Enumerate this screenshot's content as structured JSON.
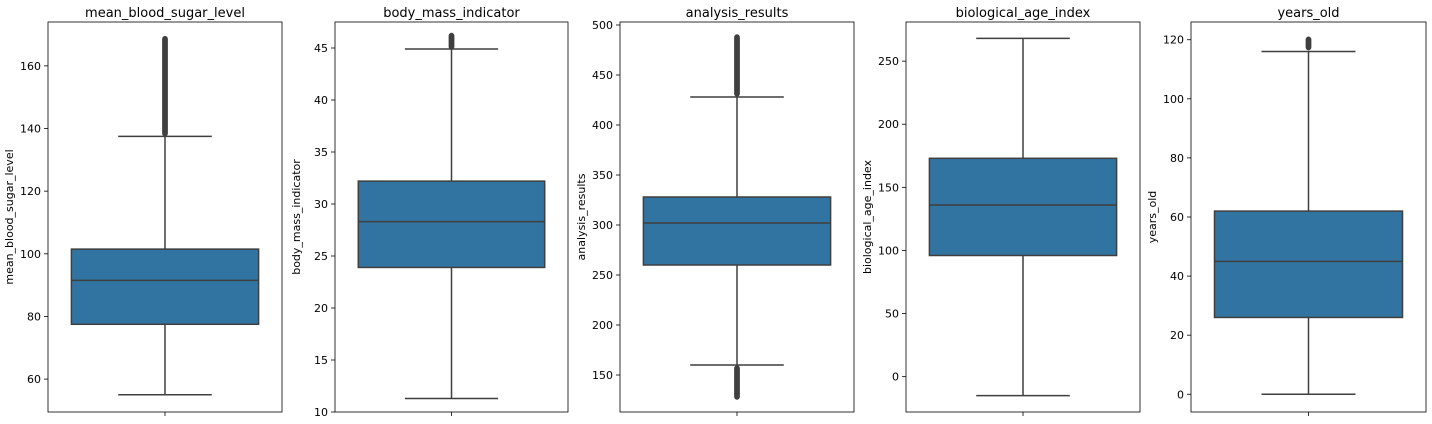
{
  "chart_data": [
    {
      "type": "box",
      "title": "mean_blood_sugar_level",
      "ylabel": "mean_blood_sugar_level",
      "ylim": [
        49.5,
        174
      ],
      "yticks": [
        60,
        80,
        100,
        120,
        140,
        160
      ],
      "stats": {
        "whisker_low": 55,
        "q1": 77.5,
        "median": 91.5,
        "q3": 101.5,
        "whisker_high": 137.5
      },
      "outliers_high": [
        138,
        169
      ],
      "outliers_low": [],
      "color": "#3274a1"
    },
    {
      "type": "box",
      "title": "body_mass_indicator",
      "ylabel": "body_mass_indicator",
      "ylim": [
        10,
        47.5
      ],
      "yticks": [
        10,
        15,
        20,
        25,
        30,
        35,
        40,
        45
      ],
      "stats": {
        "whisker_low": 11.3,
        "q1": 23.9,
        "median": 28.3,
        "q3": 32.2,
        "whisker_high": 44.9
      },
      "outliers_high": [
        45,
        46.3
      ],
      "outliers_low": [],
      "color": "#3274a1"
    },
    {
      "type": "box",
      "title": "analysis_results",
      "ylabel": "analysis_results",
      "ylim": [
        113,
        503
      ],
      "yticks": [
        150,
        200,
        250,
        300,
        350,
        400,
        450,
        500
      ],
      "stats": {
        "whisker_low": 160,
        "q1": 260,
        "median": 302,
        "q3": 328,
        "whisker_high": 428
      },
      "outliers_high": [
        430,
        489
      ],
      "outliers_low": [
        127,
        158
      ],
      "color": "#3274a1"
    },
    {
      "type": "box",
      "title": "biological_age_index",
      "ylabel": "biological_age_index",
      "ylim": [
        -28,
        281
      ],
      "yticks": [
        0,
        50,
        100,
        150,
        200,
        250
      ],
      "stats": {
        "whisker_low": -15,
        "q1": 96,
        "median": 136,
        "q3": 173,
        "whisker_high": 268
      },
      "outliers_high": [],
      "outliers_low": [],
      "color": "#3274a1"
    },
    {
      "type": "box",
      "title": "years_old",
      "ylabel": "years_old",
      "ylim": [
        -6,
        126
      ],
      "yticks": [
        0,
        20,
        40,
        60,
        80,
        100,
        120
      ],
      "stats": {
        "whisker_low": 0,
        "q1": 26,
        "median": 45,
        "q3": 62,
        "whisker_high": 116
      },
      "outliers_high": [
        117,
        120.5
      ],
      "outliers_low": [],
      "color": "#3274a1"
    }
  ]
}
